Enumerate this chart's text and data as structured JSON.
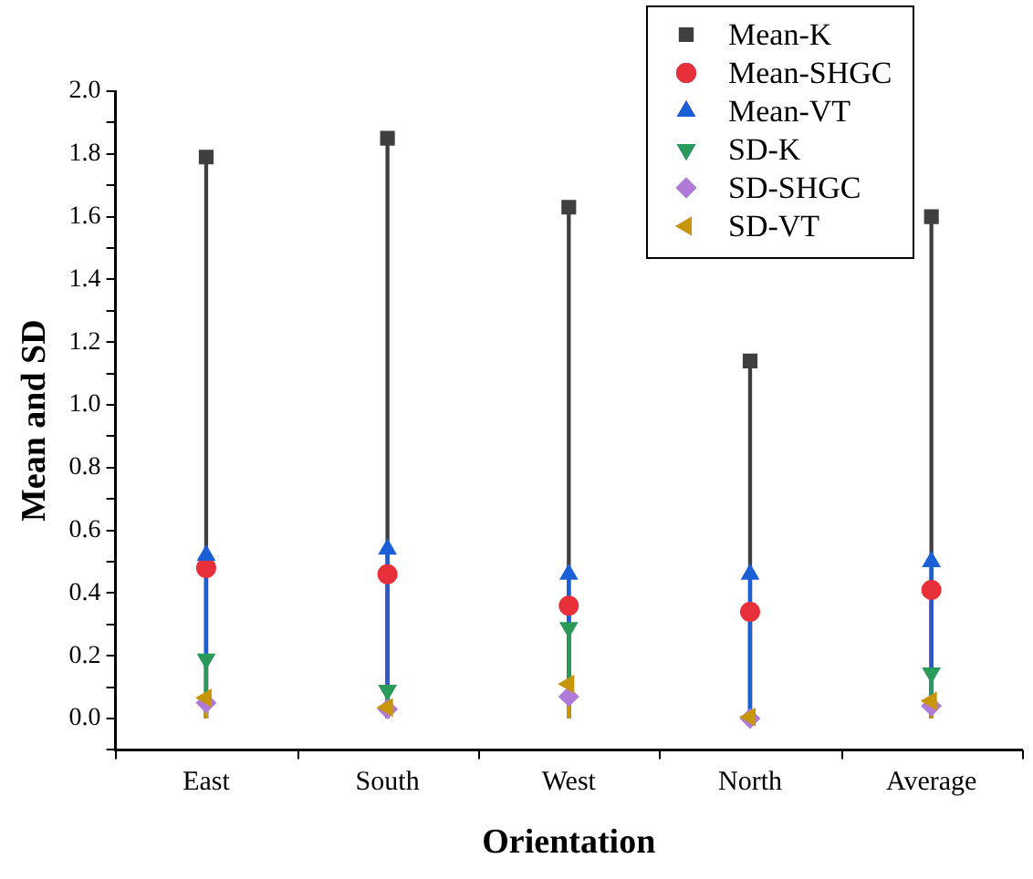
{
  "chart_data": {
    "type": "lollipop",
    "xlabel": "Orientation",
    "ylabel": "Mean and SD",
    "categories": [
      "East",
      "South",
      "West",
      "North",
      "Average"
    ],
    "ylim": [
      -0.1,
      2.0
    ],
    "yticks": [
      {
        "value": -0.1,
        "label": null
      },
      {
        "value": 0,
        "label": "0.0"
      },
      {
        "value": 0.1,
        "label": null
      },
      {
        "value": 0.2,
        "label": "0.2"
      },
      {
        "value": 0.3,
        "label": null
      },
      {
        "value": 0.4,
        "label": "0.4"
      },
      {
        "value": 0.5,
        "label": null
      },
      {
        "value": 0.6,
        "label": "0.6"
      },
      {
        "value": 0.7,
        "label": null
      },
      {
        "value": 0.8,
        "label": "0.8"
      },
      {
        "value": 0.9,
        "label": null
      },
      {
        "value": 1.0,
        "label": "1.0"
      },
      {
        "value": 1.1,
        "label": null
      },
      {
        "value": 1.2,
        "label": "1.2"
      },
      {
        "value": 1.3,
        "label": null
      },
      {
        "value": 1.4,
        "label": "1.4"
      },
      {
        "value": 1.5,
        "label": null
      },
      {
        "value": 1.6,
        "label": "1.6"
      },
      {
        "value": 1.7,
        "label": null
      },
      {
        "value": 1.8,
        "label": "1.8"
      },
      {
        "value": 1.9,
        "label": null
      },
      {
        "value": 2.0,
        "label": "2.0"
      }
    ],
    "grid": false,
    "legend": "top right",
    "series": [
      {
        "name": "Mean-K",
        "color": "#3f3f3f",
        "marker": "square",
        "values": [
          1.79,
          1.85,
          1.63,
          1.14,
          1.6
        ]
      },
      {
        "name": "Mean-SHGC",
        "color": "#e8303a",
        "marker": "circle",
        "values": [
          0.48,
          0.46,
          0.36,
          0.34,
          0.41
        ]
      },
      {
        "name": "Mean-VT",
        "color": "#1a5fd6",
        "marker": "triangle",
        "values": [
          0.52,
          0.54,
          0.46,
          0.46,
          0.5
        ]
      },
      {
        "name": "SD-K",
        "color": "#2a9a5a",
        "marker": "triangle-down",
        "values": [
          0.19,
          0.09,
          0.29,
          null,
          0.145
        ]
      },
      {
        "name": "SD-SHGC",
        "color": "#b07ad8",
        "marker": "diamond",
        "values": [
          0.05,
          0.03,
          0.07,
          0.0,
          0.04
        ]
      },
      {
        "name": "SD-VT",
        "color": "#c8960a",
        "marker": "triangle-left",
        "values": [
          0.066,
          0.035,
          0.11,
          0.005,
          0.056
        ]
      }
    ]
  }
}
